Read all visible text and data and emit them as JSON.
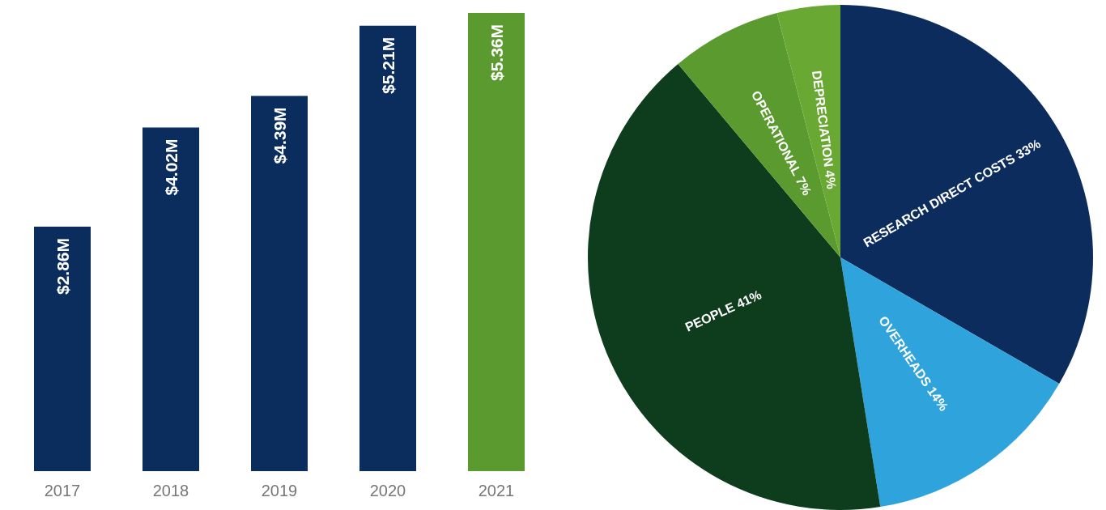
{
  "chart_data": [
    {
      "type": "bar",
      "categories": [
        "2017",
        "2018",
        "2019",
        "2020",
        "2021"
      ],
      "values": [
        2.86,
        4.02,
        4.39,
        5.21,
        5.36
      ],
      "colors": [
        "#0a2d5e",
        "#0a2d5e",
        "#0a2d5e",
        "#0a2d5e",
        "#5a9a2e"
      ],
      "value_labels": [
        "$2.86M",
        "$4.02M",
        "$4.39M",
        "$5.21M",
        "$5.36M"
      ],
      "grid": false,
      "legend": false,
      "tick_labels": "x"
    },
    {
      "type": "pie",
      "categories": [
        "RESEARCH DIRECT COSTS",
        "OVERHEADS",
        "PEOPLE",
        "OPERATIONAL",
        "DEPRECIATION"
      ],
      "values": [
        33,
        14,
        41,
        7,
        4
      ],
      "colors": [
        "#0b2c5c",
        "#2ea3dc",
        "#0e3d1e",
        "#5a9a2e",
        "#6aa834"
      ],
      "value_labels": [
        "33%",
        "14%",
        "41%",
        "7%",
        "4%"
      ],
      "legend": false
    }
  ]
}
